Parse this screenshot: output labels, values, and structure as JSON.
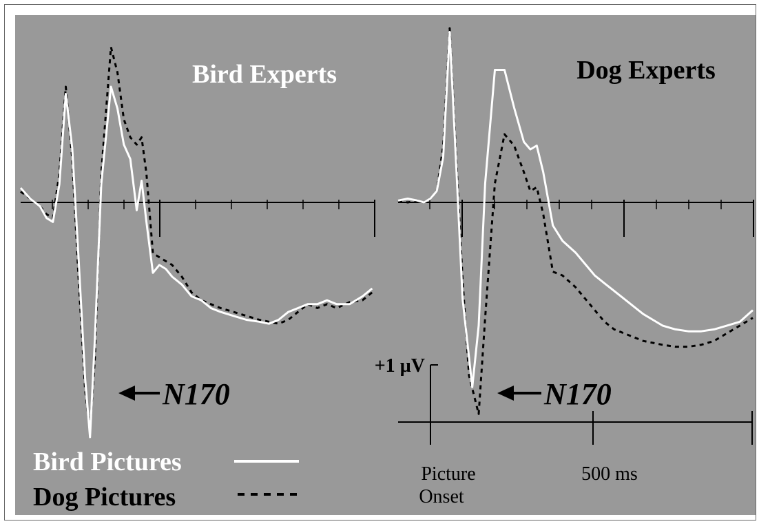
{
  "chart_data": [
    {
      "type": "line",
      "title": "Bird Experts",
      "xlim": [
        -100,
        1000
      ],
      "ylim": [
        -6.0,
        4.8
      ],
      "series": [
        {
          "name": "Bird Pictures",
          "color": "#ffffff",
          "dash": "solid",
          "points": [
            [
              -100,
              0.4
            ],
            [
              -70,
              0.1
            ],
            [
              -40,
              -0.1
            ],
            [
              -20,
              -0.4
            ],
            [
              0,
              -0.5
            ],
            [
              20,
              0.5
            ],
            [
              40,
              3.0
            ],
            [
              60,
              1.5
            ],
            [
              80,
              -1.5
            ],
            [
              100,
              -4.5
            ],
            [
              115,
              -6.0
            ],
            [
              130,
              -3.5
            ],
            [
              150,
              0.5
            ],
            [
              180,
              3.2
            ],
            [
              200,
              2.6
            ],
            [
              220,
              1.6
            ],
            [
              240,
              1.2
            ],
            [
              260,
              -0.2
            ],
            [
              275,
              0.6
            ],
            [
              290,
              -0.5
            ],
            [
              310,
              -1.8
            ],
            [
              330,
              -1.6
            ],
            [
              350,
              -1.7
            ],
            [
              370,
              -1.9
            ],
            [
              400,
              -2.1
            ],
            [
              430,
              -2.4
            ],
            [
              460,
              -2.5
            ],
            [
              490,
              -2.7
            ],
            [
              520,
              -2.8
            ],
            [
              560,
              -2.9
            ],
            [
              600,
              -3.0
            ],
            [
              640,
              -3.05
            ],
            [
              670,
              -3.1
            ],
            [
              700,
              -3.0
            ],
            [
              730,
              -2.8
            ],
            [
              760,
              -2.7
            ],
            [
              790,
              -2.6
            ],
            [
              820,
              -2.6
            ],
            [
              850,
              -2.5
            ],
            [
              880,
              -2.6
            ],
            [
              920,
              -2.6
            ],
            [
              960,
              -2.4
            ],
            [
              990,
              -2.2
            ]
          ]
        },
        {
          "name": "Dog Pictures",
          "color": "#000000",
          "dash": "6,6",
          "points": [
            [
              -100,
              0.3
            ],
            [
              -70,
              0.1
            ],
            [
              -40,
              -0.1
            ],
            [
              -20,
              -0.3
            ],
            [
              0,
              -0.4
            ],
            [
              20,
              0.8
            ],
            [
              40,
              3.2
            ],
            [
              60,
              1.2
            ],
            [
              80,
              -2.0
            ],
            [
              100,
              -4.8
            ],
            [
              115,
              -5.8
            ],
            [
              130,
              -4.0
            ],
            [
              150,
              0.8
            ],
            [
              180,
              4.3
            ],
            [
              200,
              3.6
            ],
            [
              220,
              2.3
            ],
            [
              240,
              1.8
            ],
            [
              260,
              1.6
            ],
            [
              275,
              1.8
            ],
            [
              290,
              0.8
            ],
            [
              310,
              -1.3
            ],
            [
              330,
              -1.4
            ],
            [
              350,
              -1.5
            ],
            [
              370,
              -1.6
            ],
            [
              400,
              -1.9
            ],
            [
              430,
              -2.3
            ],
            [
              460,
              -2.5
            ],
            [
              490,
              -2.6
            ],
            [
              520,
              -2.7
            ],
            [
              560,
              -2.8
            ],
            [
              600,
              -2.9
            ],
            [
              640,
              -3.0
            ],
            [
              670,
              -3.05
            ],
            [
              700,
              -3.1
            ],
            [
              730,
              -3.0
            ],
            [
              760,
              -2.8
            ],
            [
              790,
              -2.6
            ],
            [
              820,
              -2.7
            ],
            [
              850,
              -2.6
            ],
            [
              880,
              -2.7
            ],
            [
              920,
              -2.55
            ],
            [
              960,
              -2.5
            ],
            [
              990,
              -2.3
            ]
          ]
        }
      ]
    },
    {
      "type": "line",
      "title": "Dog Experts",
      "xlim": [
        -100,
        1000
      ],
      "ylim": [
        -5.6,
        4.8
      ],
      "series": [
        {
          "name": "Bird Pictures",
          "color": "#ffffff",
          "dash": "solid",
          "points": [
            [
              -100,
              0.05
            ],
            [
              -70,
              0.1
            ],
            [
              -40,
              0.05
            ],
            [
              -20,
              0.0
            ],
            [
              0,
              0.1
            ],
            [
              20,
              0.3
            ],
            [
              40,
              1.2
            ],
            [
              60,
              4.5
            ],
            [
              80,
              1.0
            ],
            [
              100,
              -2.5
            ],
            [
              130,
              -4.8
            ],
            [
              150,
              -3.2
            ],
            [
              170,
              0.5
            ],
            [
              200,
              3.5
            ],
            [
              230,
              3.5
            ],
            [
              260,
              2.5
            ],
            [
              290,
              1.6
            ],
            [
              310,
              1.4
            ],
            [
              330,
              1.5
            ],
            [
              350,
              0.8
            ],
            [
              380,
              -0.6
            ],
            [
              410,
              -1.0
            ],
            [
              450,
              -1.3
            ],
            [
              480,
              -1.6
            ],
            [
              510,
              -1.9
            ],
            [
              540,
              -2.1
            ],
            [
              570,
              -2.3
            ],
            [
              600,
              -2.5
            ],
            [
              630,
              -2.7
            ],
            [
              660,
              -2.9
            ],
            [
              690,
              -3.05
            ],
            [
              720,
              -3.2
            ],
            [
              760,
              -3.3
            ],
            [
              800,
              -3.35
            ],
            [
              840,
              -3.35
            ],
            [
              880,
              -3.3
            ],
            [
              920,
              -3.2
            ],
            [
              960,
              -3.1
            ],
            [
              1000,
              -2.8
            ]
          ]
        },
        {
          "name": "Dog Pictures",
          "color": "#000000",
          "dash": "6,6",
          "points": [
            [
              -100,
              0.05
            ],
            [
              -70,
              0.0
            ],
            [
              -40,
              0.05
            ],
            [
              -20,
              0.0
            ],
            [
              0,
              0.1
            ],
            [
              20,
              0.3
            ],
            [
              40,
              1.5
            ],
            [
              60,
              4.6
            ],
            [
              80,
              1.2
            ],
            [
              100,
              -2.0
            ],
            [
              120,
              -4.5
            ],
            [
              150,
              -5.5
            ],
            [
              170,
              -3.0
            ],
            [
              200,
              0.5
            ],
            [
              230,
              1.8
            ],
            [
              260,
              1.5
            ],
            [
              290,
              0.8
            ],
            [
              310,
              0.3
            ],
            [
              330,
              0.4
            ],
            [
              350,
              -0.3
            ],
            [
              380,
              -1.8
            ],
            [
              410,
              -1.9
            ],
            [
              450,
              -2.2
            ],
            [
              480,
              -2.5
            ],
            [
              510,
              -2.8
            ],
            [
              540,
              -3.1
            ],
            [
              570,
              -3.3
            ],
            [
              600,
              -3.4
            ],
            [
              630,
              -3.5
            ],
            [
              660,
              -3.6
            ],
            [
              690,
              -3.65
            ],
            [
              720,
              -3.7
            ],
            [
              760,
              -3.75
            ],
            [
              800,
              -3.75
            ],
            [
              840,
              -3.7
            ],
            [
              880,
              -3.6
            ],
            [
              920,
              -3.4
            ],
            [
              960,
              -3.2
            ],
            [
              1000,
              -3.0
            ]
          ]
        }
      ]
    }
  ],
  "annotations": {
    "n170_left": "N170",
    "n170_right": "N170",
    "scale_bar_label": "+1 µV",
    "x_label_onset_line1": "Picture",
    "x_label_onset_line2": "Onset",
    "x_label_500": "500 ms"
  },
  "legend": {
    "bird_label": "Bird Pictures",
    "dog_label": "Dog Pictures"
  },
  "colors": {
    "background": "#999999",
    "frame": "#ffffff",
    "bird_line": "#ffffff",
    "dog_line": "#000000",
    "axis": "#000000"
  }
}
